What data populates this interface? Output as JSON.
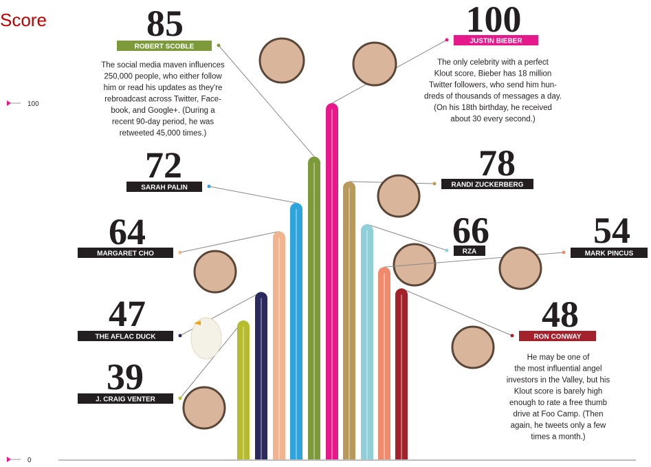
{
  "chart_data": {
    "type": "bar",
    "title": "Score",
    "categories": [
      "J. CRAIG VENTER",
      "THE AFLAC DUCK",
      "MARGARET CHO",
      "SARAH PALIN",
      "ROBERT SCOBLE",
      "JUSTIN BIEBER",
      "RANDI ZUCKERBERG",
      "RZA",
      "MARK PINCUS",
      "RON CONWAY"
    ],
    "values": [
      39,
      47,
      64,
      72,
      85,
      100,
      78,
      66,
      54,
      48
    ],
    "colors": [
      "#b5bd2e",
      "#2b2a5e",
      "#f2b48f",
      "#2fa3dc",
      "#7d9a3a",
      "#e5198a",
      "#b99a5a",
      "#8fd0d8",
      "#f08a6c",
      "#a3212a"
    ],
    "label_colors": [
      "#231f20",
      "#231f20",
      "#231f20",
      "#231f20",
      "#7d9a3a",
      "#e5198a",
      "#231f20",
      "#231f20",
      "#231f20",
      "#a3212a"
    ],
    "ylim": [
      0,
      100
    ],
    "yticks": [
      0,
      100
    ],
    "annotations": [
      {
        "lines": [
          "The social media maven influences",
          "250,000 people, who either follow",
          "him or read his updates as they're",
          "rebroadcast across Twitter, Face-",
          "book, and Google+. (During a",
          "recent 90-day period, he was",
          "retweeted 45,000 times.)"
        ]
      },
      {
        "lines": [
          "The only celebrity with a perfect",
          "Klout score, Bieber has 18 million",
          "Twitter followers, who send him hun-",
          "dreds of thousands of messages a day.",
          "(On his 18th birthday, he received",
          "about 30 every second.)"
        ]
      },
      {
        "lines": [
          "He may be one of",
          "the most influential angel",
          "investors in the Valley, but his",
          "Klout score is barely high",
          "enough to rate a free thumb",
          "drive at Foo Camp. (Then",
          "again, he tweets only a few",
          "times a month.)"
        ]
      }
    ]
  }
}
